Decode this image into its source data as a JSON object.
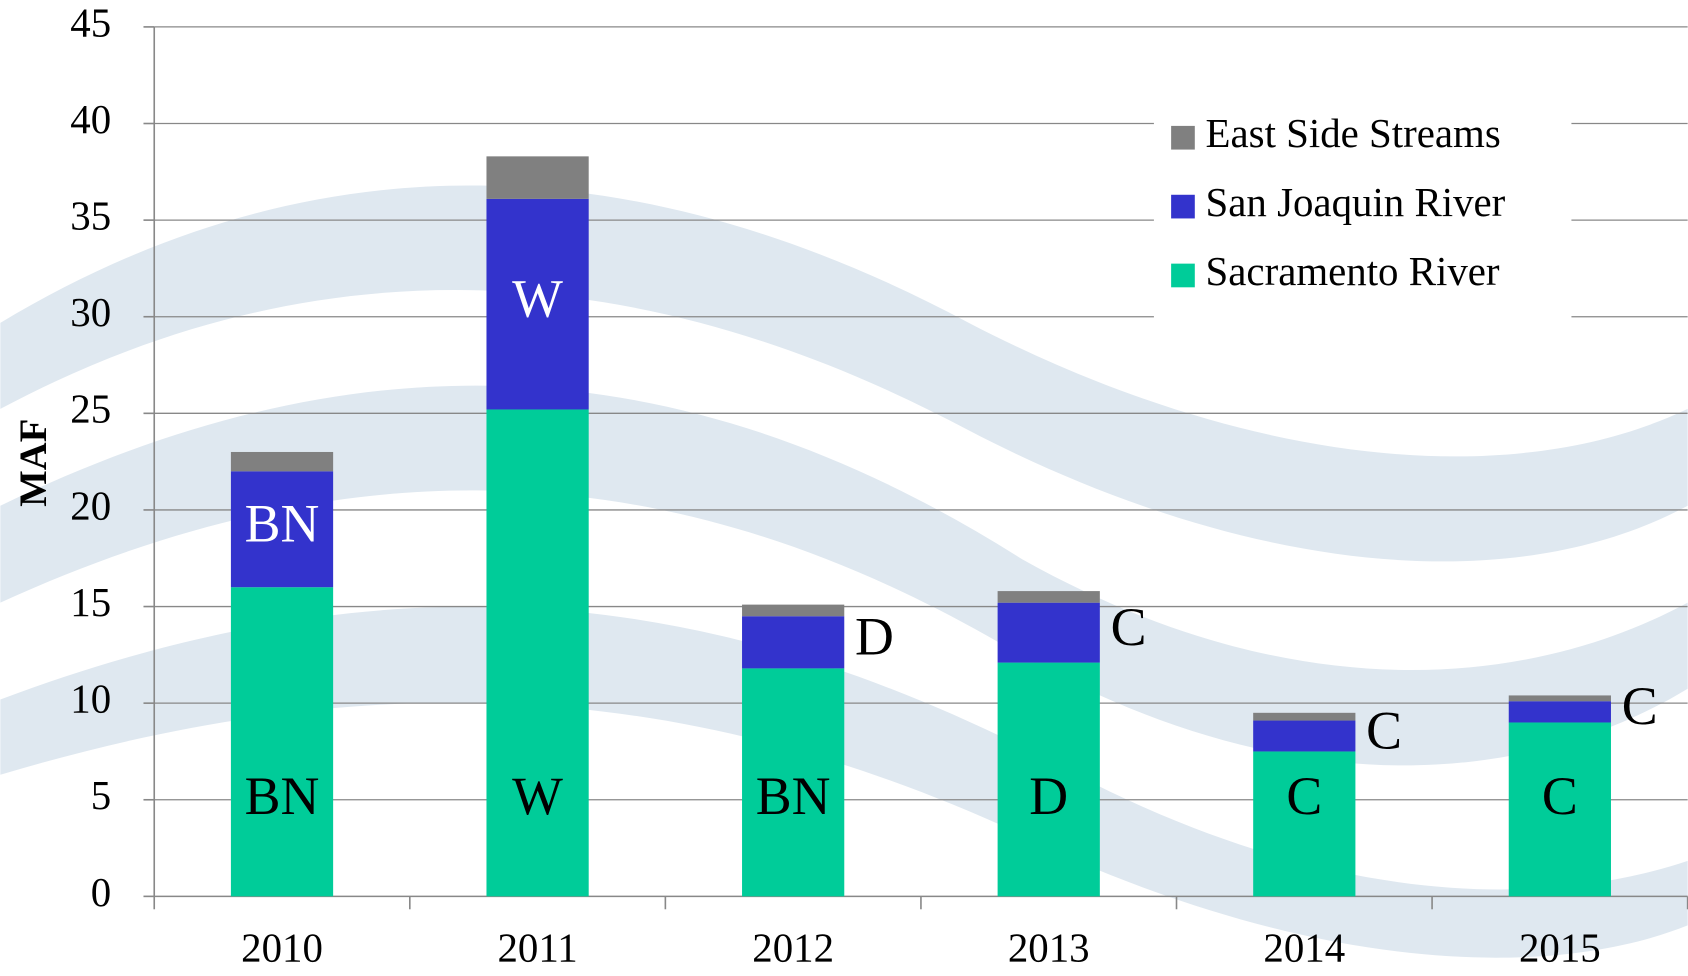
{
  "chart_data": {
    "type": "stacked-bar",
    "y_label": "MAF",
    "categories": [
      "2010",
      "2011",
      "2012",
      "2013",
      "2014",
      "2015"
    ],
    "series": [
      {
        "name": "Sacramento River",
        "color": "#00cc99",
        "values": [
          16.0,
          25.2,
          11.8,
          12.1,
          7.5,
          9.0
        ],
        "labels": [
          "BN",
          "W",
          "BN",
          "D",
          "C",
          "C"
        ]
      },
      {
        "name": "San Joaquin River",
        "color": "#3333cc",
        "values": [
          6.0,
          10.9,
          2.7,
          3.1,
          1.6,
          1.1
        ],
        "labels": [
          "BN",
          "W",
          "D",
          "C",
          "C",
          "C"
        ]
      },
      {
        "name": "East Side Streams",
        "color": "#808080",
        "values": [
          1.0,
          2.2,
          0.6,
          0.6,
          0.4,
          0.3
        ]
      }
    ],
    "ylim": [
      0,
      45
    ],
    "yticks": [
      0,
      5,
      10,
      15,
      20,
      25,
      30,
      35,
      40,
      45
    ],
    "grid": true,
    "legend": "top-right"
  }
}
